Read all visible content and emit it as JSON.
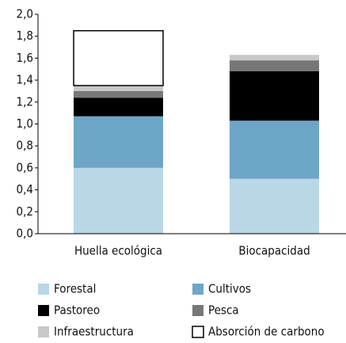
{
  "chart_data": {
    "type": "stacked_bar",
    "categories": [
      "Huella ecológica",
      "Biocapacidad"
    ],
    "series": [
      {
        "name": "Forestal",
        "color": "#b9d7e6",
        "values": [
          0.6,
          0.5
        ]
      },
      {
        "name": "Cultivos",
        "color": "#6ea6c8",
        "values": [
          0.47,
          0.53
        ]
      },
      {
        "name": "Pastoreo",
        "color": "#000000",
        "values": [
          0.17,
          0.45
        ]
      },
      {
        "name": "Pesca",
        "color": "#777777",
        "values": [
          0.06,
          0.1
        ]
      },
      {
        "name": "Infraestructura",
        "color": "#c8c8c8",
        "values": [
          0.05,
          0.05
        ]
      },
      {
        "name": "Absorción de carbono",
        "color": "#ffffff",
        "values": [
          0.5,
          0
        ]
      }
    ],
    "ylim": [
      0,
      2
    ],
    "yticks": [
      {
        "value": 0,
        "label": "0,0"
      },
      {
        "value": 0.2,
        "label": "0,2"
      },
      {
        "value": 0.4,
        "label": "0,4"
      },
      {
        "value": 0.6,
        "label": "0,6"
      },
      {
        "value": 0.8,
        "label": "0,8"
      },
      {
        "value": 1,
        "label": "1,0"
      },
      {
        "value": 1.2,
        "label": "1,2"
      },
      {
        "value": 1.4,
        "label": "1,4"
      },
      {
        "value": 1.6,
        "label": "1,6"
      },
      {
        "value": 1.8,
        "label": "1,8"
      },
      {
        "value": 2,
        "label": "2,0"
      }
    ],
    "legend": "bottom"
  }
}
